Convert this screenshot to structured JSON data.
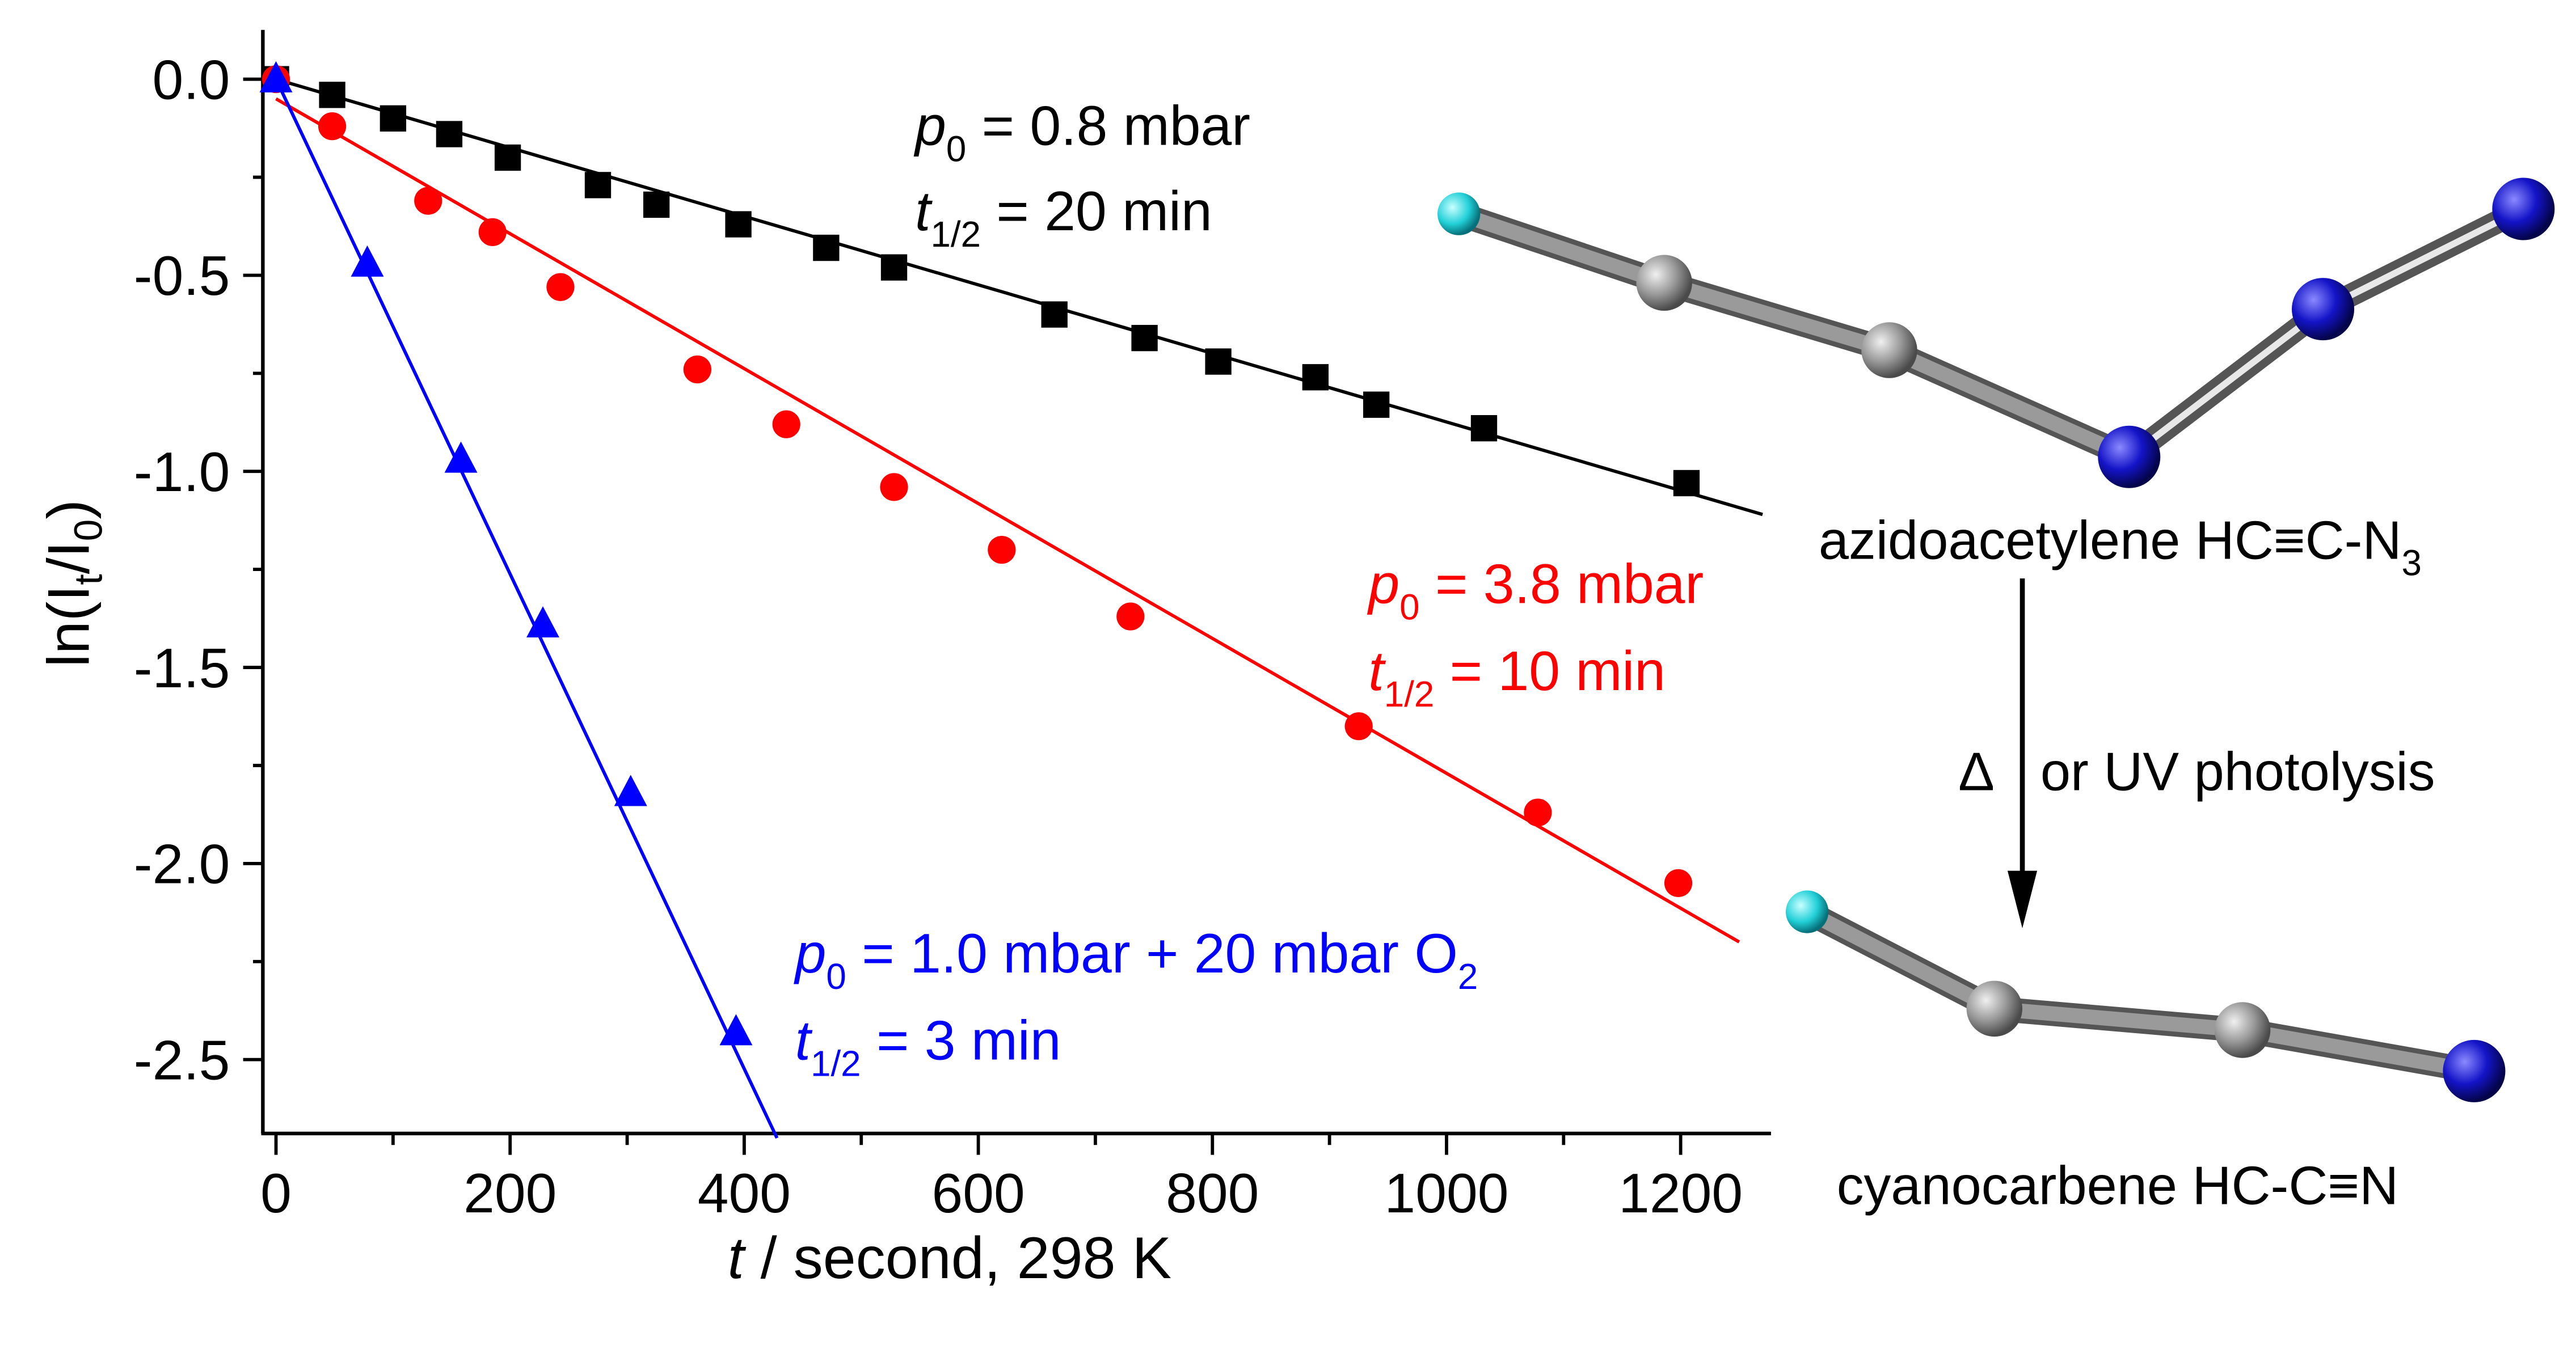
{
  "chart_data": {
    "type": "scatter",
    "title": "",
    "xlabel": "t / second, 298 K",
    "xlabel_italic_part": "t",
    "xlabel_rest": " / second, 298 K",
    "ylabel": "ln(It/I0)",
    "ylabel_parts": {
      "prefix": "ln(I",
      "sub1": "t",
      "mid": "/I",
      "sub2": "0",
      "suffix": ")"
    },
    "xlim": [
      -10,
      1275
    ],
    "ylim": [
      -2.7,
      0.12
    ],
    "xticks": [
      0,
      200,
      400,
      600,
      800,
      1000,
      1200
    ],
    "xtick_labels": [
      "0",
      "200",
      "400",
      "600",
      "800",
      "1000",
      "1200"
    ],
    "xminor": [
      100,
      300,
      500,
      700,
      900,
      1100
    ],
    "yticks": [
      0.0,
      -0.5,
      -1.0,
      -1.5,
      -2.0,
      -2.5
    ],
    "ytick_labels": [
      "0.0",
      "-0.5",
      "-1.0",
      "-1.5",
      "-2.0",
      "-2.5"
    ],
    "yminor": [
      -0.25,
      -0.75,
      -1.25,
      -1.75,
      -2.25
    ],
    "grid": false,
    "series": [
      {
        "name": "p0 = 0.8 mbar",
        "marker": "square",
        "color": "#000000",
        "x": [
          0,
          48,
          100,
          148,
          198,
          275,
          325,
          395,
          470,
          528,
          665,
          742,
          805,
          888,
          940,
          1032,
          1205
        ],
        "y": [
          0,
          -0.04,
          -0.1,
          -0.14,
          -0.2,
          -0.27,
          -0.32,
          -0.37,
          -0.43,
          -0.48,
          -0.6,
          -0.66,
          -0.72,
          -0.76,
          -0.83,
          -0.89,
          -1.03
        ],
        "fit": {
          "x": [
            0,
            1270
          ],
          "y": [
            0,
            -1.11
          ]
        }
      },
      {
        "name": "p0 = 3.8 mbar",
        "marker": "circle",
        "color": "#ff0000",
        "x": [
          0,
          48,
          130,
          185,
          243,
          360,
          436,
          528,
          620,
          730,
          925,
          1078,
          1198
        ],
        "y": [
          0,
          -0.12,
          -0.31,
          -0.39,
          -0.53,
          -0.74,
          -0.88,
          -1.04,
          -1.2,
          -1.37,
          -1.65,
          -1.87,
          -2.05
        ],
        "fit": {
          "x": [
            0,
            1250
          ],
          "y": [
            -0.05,
            -2.2
          ]
        }
      },
      {
        "name": "p0 = 1.0 mbar + 20 mbar O2",
        "marker": "triangle",
        "color": "#0000ff",
        "x": [
          0,
          78,
          158,
          228,
          303,
          393
        ],
        "y": [
          0,
          -0.47,
          -0.97,
          -1.39,
          -1.82,
          -2.43
        ],
        "fit": {
          "x": [
            0,
            428
          ],
          "y": [
            0,
            -2.7
          ]
        }
      }
    ],
    "annotations": [
      {
        "color": "#000000",
        "line1": {
          "var": "p",
          "sub": "0",
          "text": " = 0.8 mbar"
        },
        "line2": {
          "var": "t",
          "sub": "1/2",
          "text": " = 20 min"
        }
      },
      {
        "color": "#ff0000",
        "line1": {
          "var": "p",
          "sub": "0",
          "text": " = 3.8 mbar"
        },
        "line2": {
          "var": "t",
          "sub": "1/2",
          "text": " = 10 min"
        }
      },
      {
        "color": "#0000ff",
        "line1": {
          "var": "p",
          "sub": "0",
          "text": " = 1.0 mbar + 20 mbar O",
          "tail_sub": "2"
        },
        "line2": {
          "var": "t",
          "sub": "1/2",
          "text": " = 3 min"
        }
      }
    ]
  },
  "scheme": {
    "reactant_label": "azidoacetylene HC≡C-N",
    "reactant_sub": "3",
    "condition_symbol": "Δ",
    "condition_text": "or UV photolysis",
    "product_label": "cyanocarbene HC-C≡N",
    "atom_colors": {
      "H": "#22d0d8",
      "C": "#8c8c8c",
      "N": "#1010c0",
      "bond": "#7a7a7a"
    }
  }
}
